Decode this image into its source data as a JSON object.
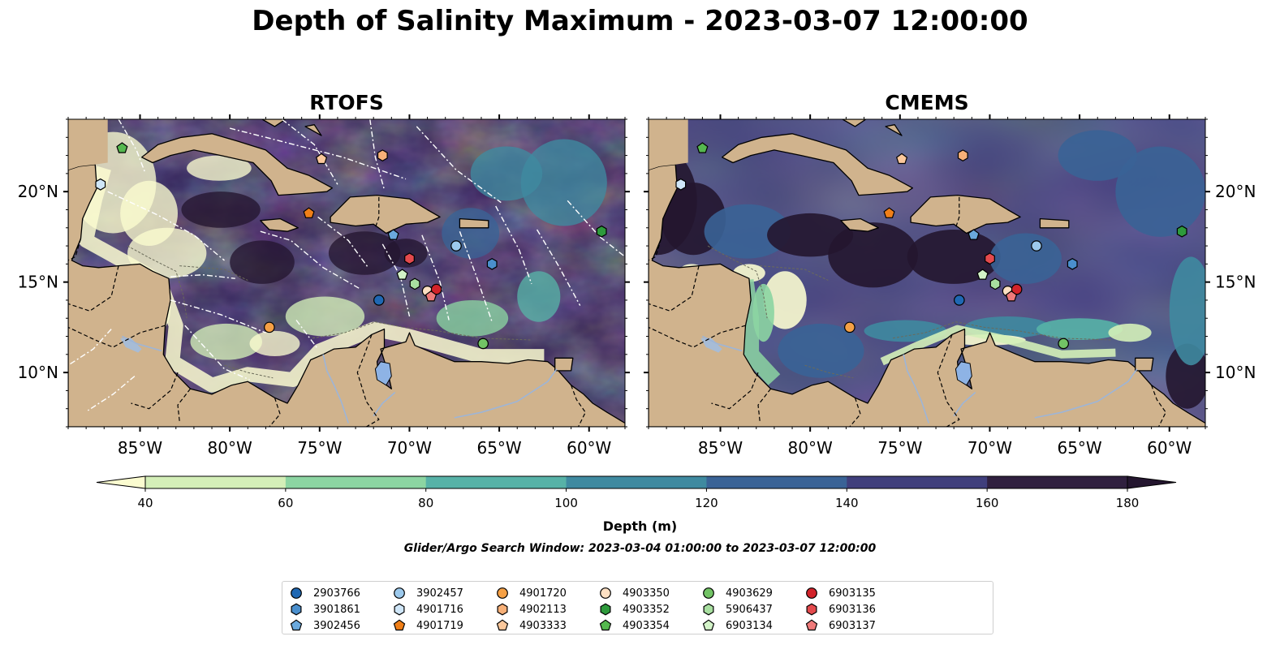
{
  "title": "Depth of Salinity Maximum - 2023-03-07 12:00:00",
  "panels": [
    {
      "title": "RTOFS",
      "shade": "rtofs"
    },
    {
      "title": "CMEMS",
      "shade": "cmems"
    }
  ],
  "map_extent": {
    "lon": [
      -89,
      -58
    ],
    "lat": [
      7,
      24
    ]
  },
  "lon_ticks": [
    -85,
    -80,
    -75,
    -70,
    -65,
    -60
  ],
  "lon_tick_labels": [
    "85°W",
    "80°W",
    "75°W",
    "70°W",
    "65°W",
    "60°W"
  ],
  "lat_ticks": [
    10,
    15,
    20
  ],
  "lat_tick_labels": [
    "10°N",
    "15°N",
    "20°N"
  ],
  "colorbar": {
    "label": "Depth (m)",
    "ticks": [
      40,
      60,
      80,
      100,
      120,
      140,
      160,
      180
    ],
    "colors": [
      "#d4efb8",
      "#8cd5a2",
      "#57b2a7",
      "#3f8aa0",
      "#3a6396",
      "#403f7c",
      "#30203f"
    ],
    "under_color": "#fbfcd0",
    "over_color": "#24162f"
  },
  "land_color": "#d0b38d",
  "lake_color": "#8eb3e5",
  "search_window": "Glider/Argo Search Window: 2023-03-04 01:00:00 to 2023-03-07 12:00:00",
  "floats": [
    {
      "id": "2903766",
      "lon": -71.7,
      "lat": 14.0,
      "marker": "circle",
      "color": "#1f68b3"
    },
    {
      "id": "3901861",
      "lon": -65.4,
      "lat": 16.0,
      "marker": "hexagon",
      "color": "#4a8fcd"
    },
    {
      "id": "3902456",
      "lon": -70.9,
      "lat": 17.6,
      "marker": "pentagon",
      "color": "#6aa9dd"
    },
    {
      "id": "3902457",
      "lon": -67.4,
      "lat": 17.0,
      "marker": "circle",
      "color": "#9cc9ec"
    },
    {
      "id": "4901716",
      "lon": -87.2,
      "lat": 20.4,
      "marker": "hexagon",
      "color": "#cfe6f8"
    },
    {
      "id": "4901719",
      "lon": -75.6,
      "lat": 18.8,
      "marker": "pentagon",
      "color": "#f07f18"
    },
    {
      "id": "4901720",
      "lon": -77.8,
      "lat": 12.5,
      "marker": "circle",
      "color": "#f5a045"
    },
    {
      "id": "4902113",
      "lon": -71.5,
      "lat": 22.0,
      "marker": "hexagon",
      "color": "#f7b078"
    },
    {
      "id": "4903333",
      "lon": -74.9,
      "lat": 21.8,
      "marker": "pentagon",
      "color": "#fbc89c"
    },
    {
      "id": "4903350",
      "lon": -69.0,
      "lat": 14.5,
      "marker": "circle",
      "color": "#fde0c3"
    },
    {
      "id": "4903352",
      "lon": -59.3,
      "lat": 17.8,
      "marker": "hexagon",
      "color": "#2e9a3c"
    },
    {
      "id": "4903354",
      "lon": -86.0,
      "lat": 22.4,
      "marker": "pentagon",
      "color": "#55b84f"
    },
    {
      "id": "4903629",
      "lon": -65.9,
      "lat": 11.6,
      "marker": "circle",
      "color": "#72c365"
    },
    {
      "id": "5906437",
      "lon": -69.7,
      "lat": 14.9,
      "marker": "hexagon",
      "color": "#a8dfa0"
    },
    {
      "id": "6903134",
      "lon": -70.4,
      "lat": 15.4,
      "marker": "pentagon",
      "color": "#d3f3c8"
    },
    {
      "id": "6903135",
      "lon": -68.5,
      "lat": 14.6,
      "marker": "circle",
      "color": "#d2232a"
    },
    {
      "id": "6903136",
      "lon": -70.0,
      "lat": 16.3,
      "marker": "hexagon",
      "color": "#e44a4d"
    },
    {
      "id": "6903137",
      "lon": -68.8,
      "lat": 14.2,
      "marker": "pentagon",
      "color": "#ef7a7a"
    }
  ]
}
